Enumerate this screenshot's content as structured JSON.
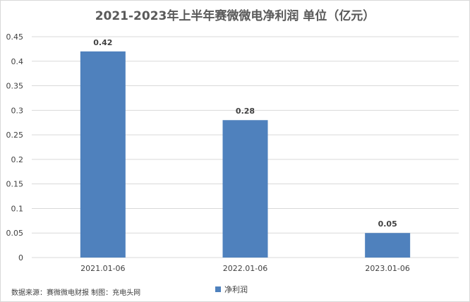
{
  "chart_data": {
    "type": "bar",
    "title": "2021-2023年上半年赛微微电净利润 单位（亿元）",
    "categories": [
      "2021.01-06",
      "2022.01-06",
      "2023.01-06"
    ],
    "series": [
      {
        "name": "净利润",
        "values": [
          0.42,
          0.28,
          0.05
        ]
      }
    ],
    "data_labels": [
      "0.42",
      "0.28",
      "0.05"
    ],
    "ylim": [
      0,
      0.45
    ],
    "yticks": [
      0,
      0.05,
      0.1,
      0.15,
      0.2,
      0.25,
      0.3,
      0.35,
      0.4,
      0.45
    ],
    "ytick_labels": [
      "0",
      "0.05",
      "0.1",
      "0.15",
      "0.2",
      "0.25",
      "0.3",
      "0.35",
      "0.4",
      "0.45"
    ],
    "grid": true,
    "legend": "bottom",
    "colors": {
      "bar": "#4f81bd",
      "grid": "#d9d9d9",
      "text": "#404040"
    }
  },
  "source_note": "数据来源：赛微微电财报 制图：充电头网"
}
